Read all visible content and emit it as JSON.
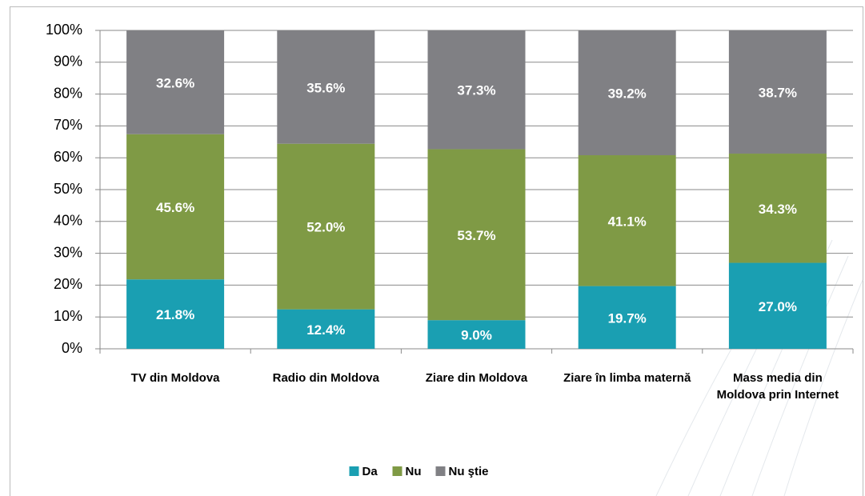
{
  "chart_data": {
    "type": "stacked_bar",
    "categories": [
      "TV din Moldova",
      "Radio din Moldova",
      "Ziare din Moldova",
      "Ziare în limba maternă",
      "Mass media din Moldova prin Internet"
    ],
    "series": [
      {
        "name": "Da",
        "color": "#1a9fb2",
        "values": [
          21.8,
          12.4,
          9.0,
          19.7,
          27.0
        ],
        "value_labels": [
          "21.8%",
          "12.4%",
          "9.0%",
          "19.7%",
          "27.0%"
        ]
      },
      {
        "name": "Nu",
        "color": "#7f9a45",
        "values": [
          45.6,
          52.0,
          53.7,
          41.1,
          34.3
        ],
        "value_labels": [
          "45.6%",
          "52.0%",
          "53.7%",
          "41.1%",
          "34.3%"
        ]
      },
      {
        "name": "Nu ştie",
        "color": "#808084",
        "values": [
          32.6,
          35.6,
          37.3,
          39.2,
          38.7
        ],
        "value_labels": [
          "32.6%",
          "35.6%",
          "37.3%",
          "39.2%",
          "38.7%"
        ]
      }
    ],
    "ylim": [
      0,
      100
    ],
    "yticks": [
      {
        "value": 0,
        "label": "0%"
      },
      {
        "value": 10,
        "label": "10%"
      },
      {
        "value": 20,
        "label": "20%"
      },
      {
        "value": 30,
        "label": "30%"
      },
      {
        "value": 40,
        "label": "40%"
      },
      {
        "value": 50,
        "label": "50%"
      },
      {
        "value": 60,
        "label": "60%"
      },
      {
        "value": 70,
        "label": "70%"
      },
      {
        "value": 80,
        "label": "80%"
      },
      {
        "value": 90,
        "label": "90%"
      },
      {
        "value": 100,
        "label": "100%"
      }
    ],
    "grid": true,
    "legend": "bottom"
  }
}
